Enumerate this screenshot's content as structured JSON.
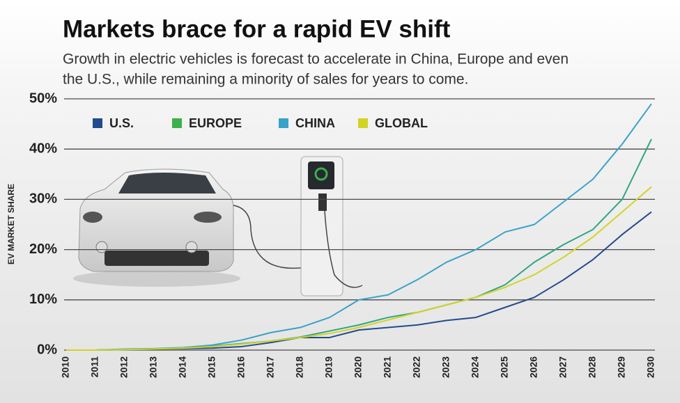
{
  "chart_data": {
    "type": "line",
    "title": "Markets brace for a rapid EV shift",
    "subtitle": [
      "Growth in electric vehicles is forecast to accelerate in China, Europe and even",
      "the U.S., while remaining a minority of sales for years to come."
    ],
    "y_label": "EV MARKET SHARE",
    "categories": [
      "2010",
      "2011",
      "2012",
      "2013",
      "2014",
      "2015",
      "2016",
      "2017",
      "2018",
      "2019",
      "2020",
      "2021",
      "2022",
      "2023",
      "2024",
      "2025",
      "2026",
      "2027",
      "2028",
      "2029",
      "2030"
    ],
    "series": [
      {
        "name": "U.S.",
        "color": "#234a8c",
        "values": [
          0,
          0,
          0.1,
          0.2,
          0.3,
          0.4,
          0.7,
          1.5,
          2.5,
          2.5,
          4,
          4.5,
          5,
          5.9,
          6.5,
          8.5,
          10.5,
          14,
          18,
          23,
          27.5
        ]
      },
      {
        "name": "EUROPE",
        "color": "#3bb04c",
        "line_color": "#2fa585",
        "values": [
          0,
          0,
          0.1,
          0.2,
          0.5,
          0.8,
          1.3,
          1.8,
          2.6,
          3.8,
          5,
          6.5,
          7.5,
          9,
          10.5,
          13,
          17.5,
          21,
          24,
          30,
          42
        ]
      },
      {
        "name": "CHINA",
        "color": "#39a2c8",
        "values": [
          0,
          0,
          0.2,
          0.3,
          0.5,
          1,
          2,
          3.5,
          4.5,
          6.5,
          10,
          11,
          14,
          17.5,
          20,
          23.5,
          25,
          29.5,
          34,
          41,
          49
        ]
      },
      {
        "name": "GLOBAL",
        "color": "#d2d324",
        "values": [
          0,
          0,
          0.1,
          0.2,
          0.4,
          0.7,
          1.2,
          1.8,
          2.5,
          3.3,
          4.5,
          6,
          7.5,
          9,
          10.5,
          12.5,
          15,
          18.5,
          22.5,
          27.5,
          32.5
        ]
      }
    ],
    "ylim": [
      0,
      50
    ],
    "yticks": [
      {
        "value": 0,
        "label": "0%"
      },
      {
        "value": 10,
        "label": "10%"
      },
      {
        "value": 20,
        "label": "20%"
      },
      {
        "value": 30,
        "label": "30%"
      },
      {
        "value": 40,
        "label": "40%"
      },
      {
        "value": 50,
        "label": "50%"
      }
    ],
    "grid": true,
    "legend": "top"
  }
}
